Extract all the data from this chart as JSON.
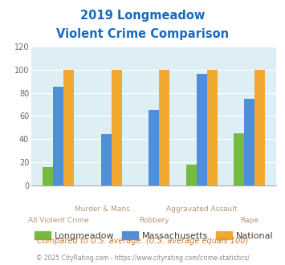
{
  "title_line1": "2019 Longmeadow",
  "title_line2": "Violent Crime Comparison",
  "categories": [
    "All Violent Crime",
    "Murder & Mans...",
    "Robbery",
    "Aggravated Assault",
    "Rape"
  ],
  "longmeadow": [
    16,
    0,
    0,
    18,
    45
  ],
  "massachusetts": [
    85,
    44,
    65,
    96,
    75
  ],
  "national": [
    100,
    100,
    100,
    100,
    100
  ],
  "colors": {
    "longmeadow": "#76bb3f",
    "massachusetts": "#4d90d9",
    "national": "#f0a830"
  },
  "ylim": [
    0,
    120
  ],
  "yticks": [
    0,
    20,
    40,
    60,
    80,
    100,
    120
  ],
  "title_color": "#1a6bbf",
  "top_label_color": "#b09878",
  "bottom_label_color": "#b09878",
  "footnote1": "Compared to U.S. average. (U.S. average equals 100)",
  "footnote2": "© 2025 CityRating.com - https://www.cityrating.com/crime-statistics/",
  "footnote1_color": "#d07828",
  "footnote2_color": "#888888",
  "bg_color": "#ddeef5",
  "fig_bg": "#ffffff",
  "legend_labels": [
    "Longmeadow",
    "Massachusetts",
    "National"
  ],
  "legend_text_color": "#444444",
  "bar_width": 0.22
}
